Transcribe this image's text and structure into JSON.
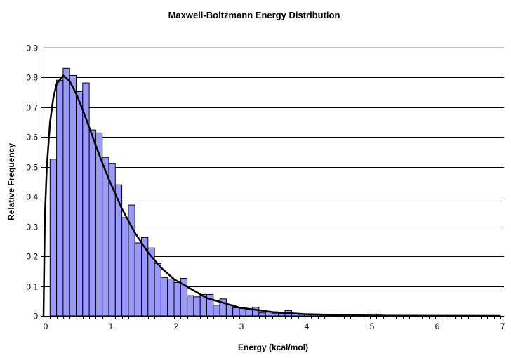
{
  "chart_data": {
    "type": "bar",
    "title": "Maxwell-Boltzmann Energy Distribution",
    "xlabel": "Energy (kcal/mol)",
    "ylabel": "Relative Frequency",
    "xlim": [
      0,
      7
    ],
    "ylim": [
      0,
      0.9
    ],
    "x_ticks": [
      "0",
      "1",
      "2",
      "3",
      "4",
      "5",
      "6",
      "7"
    ],
    "y_ticks": [
      "0",
      "0.1",
      "0.2",
      "0.3",
      "0.4",
      "0.5",
      "0.6",
      "0.7",
      "0.8",
      "0.9"
    ],
    "grid": "horizontal",
    "legend": "none",
    "bin_width": 0.1,
    "bin_starts_from": 0,
    "histogram_values": [
      0,
      0.526,
      0.791,
      0.831,
      0.807,
      0.753,
      0.782,
      0.624,
      0.614,
      0.532,
      0.512,
      0.44,
      0.33,
      0.372,
      0.245,
      0.263,
      0.228,
      0.176,
      0.129,
      0.124,
      0.112,
      0.126,
      0.068,
      0.064,
      0.072,
      0.072,
      0.036,
      0.057,
      0.037,
      0.027,
      0.025,
      0.022,
      0.029,
      0.01,
      0.013,
      0.009,
      0.008,
      0.018,
      0.006,
      0.005,
      0.005,
      0.004,
      0.004,
      0.004,
      0.004,
      0.003,
      0.003,
      0.003,
      0.003,
      0.003,
      0.006,
      0.003,
      0.001,
      0.001,
      0.001,
      0.001,
      0.001,
      0.001,
      0.001,
      0.001,
      0.001,
      0.001,
      0.001,
      0.001,
      0.001,
      0.001,
      0.001,
      0.001,
      0.001,
      0.001
    ],
    "curve": {
      "x": [
        0,
        0.02,
        0.05,
        0.1,
        0.15,
        0.2,
        0.3,
        0.4,
        0.5,
        0.6,
        0.7,
        0.8,
        0.9,
        1.0,
        1.2,
        1.4,
        1.6,
        1.8,
        2.0,
        2.5,
        3.0,
        3.5,
        4.0,
        5.0,
        6.0,
        7.0
      ],
      "y": [
        0,
        0.332,
        0.5,
        0.65,
        0.732,
        0.778,
        0.807,
        0.788,
        0.746,
        0.692,
        0.633,
        0.572,
        0.514,
        0.459,
        0.36,
        0.279,
        0.213,
        0.162,
        0.123,
        0.06,
        0.028,
        0.013,
        0.006,
        0.001,
        0.0002,
        0
      ]
    },
    "colors": {
      "bar_fill": "#9999ff",
      "bar_stroke": "#000000",
      "curve": "#000000",
      "grid": "#000000"
    }
  }
}
